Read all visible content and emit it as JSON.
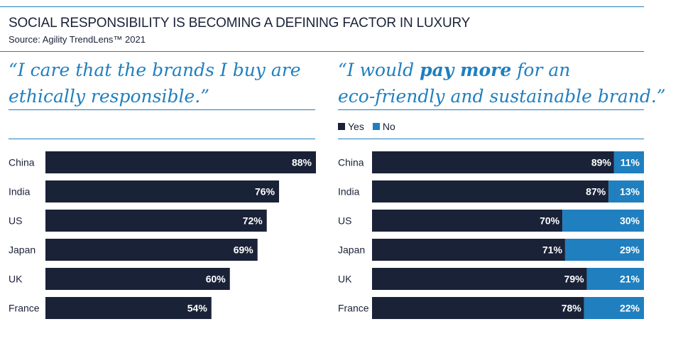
{
  "header": {
    "title": "SOCIAL RESPONSIBILITY IS BECOMING A DEFINING FACTOR IN LUXURY",
    "source": "Source: Agility TrendLens™ 2021"
  },
  "left_panel": {
    "quote_line1": "“I care that the brands I buy are",
    "quote_line2": "ethically responsible.”"
  },
  "right_panel": {
    "quote_line1_a": "“I would ",
    "quote_line1_b": "pay more",
    "quote_line1_c": " for an",
    "quote_line2": "eco-friendly and sustainable brand.”"
  },
  "colors": {
    "yes": "#1a2238",
    "no": "#1f7fbf",
    "accent": "#1f7fbf",
    "label_text": "#ffffff"
  },
  "chart_data": [
    {
      "type": "bar",
      "orientation": "horizontal",
      "categories": [
        "China",
        "India",
        "US",
        "Japan",
        "UK",
        "France"
      ],
      "series": [
        {
          "values": [
            88,
            76,
            72,
            69,
            60,
            54
          ],
          "labels": [
            "88%",
            "76%",
            "72%",
            "69%",
            "60%",
            "54%"
          ]
        }
      ],
      "xlim": [
        0,
        88
      ]
    },
    {
      "type": "bar",
      "orientation": "horizontal",
      "stacked": true,
      "categories": [
        "China",
        "India",
        "US",
        "Japan",
        "UK",
        "France"
      ],
      "series": [
        {
          "name": "Yes",
          "values": [
            89,
            87,
            70,
            71,
            79,
            78
          ],
          "labels": [
            "89%",
            "87%",
            "70%",
            "71%",
            "79%",
            "78%"
          ]
        },
        {
          "name": "No",
          "values": [
            11,
            13,
            30,
            29,
            21,
            22
          ],
          "labels": [
            "11%",
            "13%",
            "30%",
            "29%",
            "21%",
            "22%"
          ]
        }
      ],
      "legend": "top-left",
      "xlim": [
        0,
        100
      ]
    }
  ]
}
